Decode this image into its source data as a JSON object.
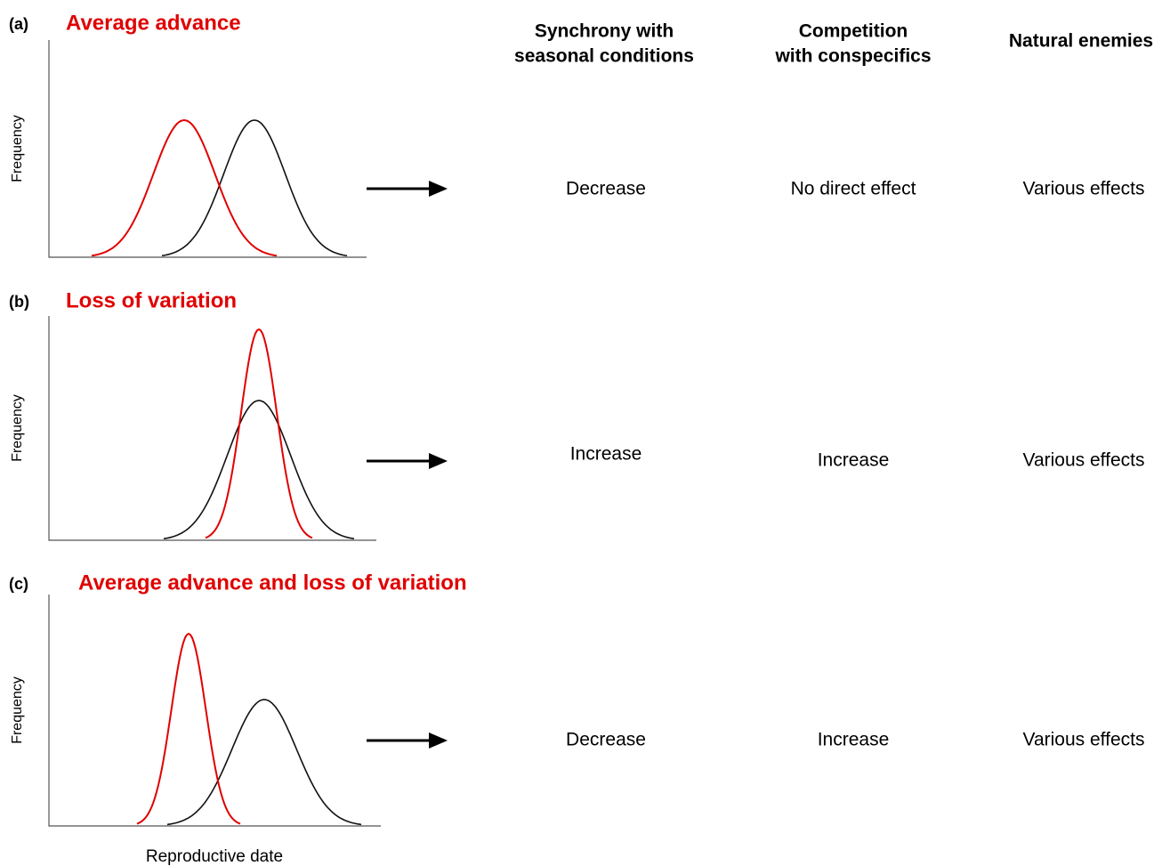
{
  "header": {
    "columns": [
      [
        "Synchrony with",
        "seasonal conditions"
      ],
      [
        "Competition",
        "with conspecifics"
      ],
      [
        "Natural enemies"
      ]
    ]
  },
  "panels": [
    {
      "label": "(a)",
      "title": "Average advance",
      "y_label": "Frequency",
      "effects": [
        "Decrease",
        "No direct effect",
        "Various effects"
      ]
    },
    {
      "label": "(b)",
      "title": "Loss of variation",
      "y_label": "Frequency",
      "effects": [
        "Increase",
        "Increase",
        "Various effects"
      ]
    },
    {
      "label": "(c)",
      "title": "Average advance and loss of variation",
      "y_label": "Frequency",
      "effects": [
        "Decrease",
        "Increase",
        "Various effects"
      ]
    }
  ],
  "x_label": "Reproductive date"
}
